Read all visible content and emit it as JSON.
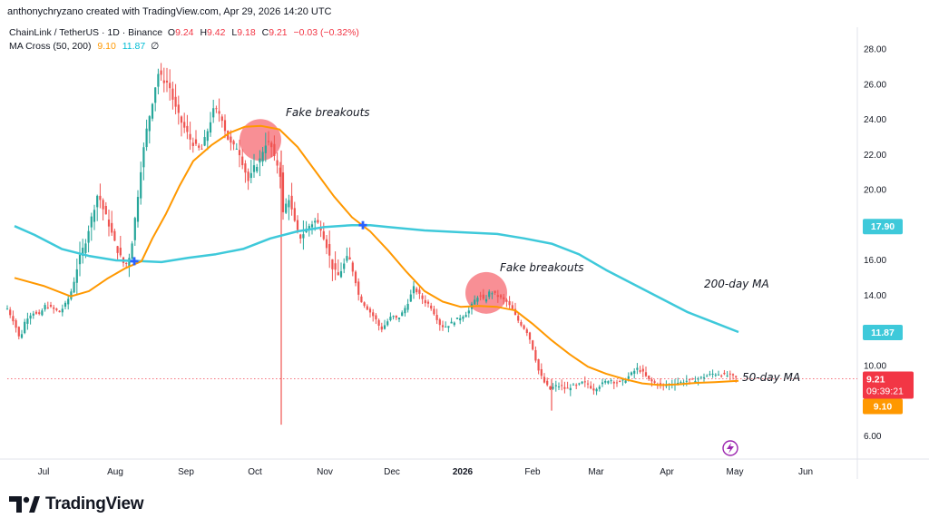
{
  "header": {
    "credit": "anthonychryzano created with TradingView.com, Apr 29, 2026 14:20 UTC",
    "symbol": "ChainLink / TetherUS · 1D · Binance",
    "ohlc": {
      "o_label": "O",
      "o": "9.24",
      "h_label": "H",
      "h": "9.42",
      "l_label": "L",
      "l": "9.18",
      "c_label": "C",
      "c": "9.21",
      "change": "−0.03 (−0.32%)"
    },
    "indicator": "MA Cross (50, 200)",
    "ma50_value": "9.10",
    "ma200_value": "11.87",
    "settings_glyph": "∅"
  },
  "brand": {
    "name": "TradingView",
    "logo_icon": "tradingview-logo-icon"
  },
  "colors": {
    "up": "#26a69a",
    "down": "#ef5350",
    "ma50": "#ff9800",
    "ma200": "#3ec9da",
    "cross_marker": "#2962ff",
    "highlight": "#f77b82",
    "price_tag": "#f23645"
  },
  "chart_data": {
    "type": "candlestick",
    "title": "ChainLink / TetherUS · 1D · Binance",
    "y_axis": {
      "ticks": [
        "28.00",
        "26.00",
        "24.00",
        "22.00",
        "20.00",
        "16.00",
        "14.00",
        "10.00",
        "6.00"
      ],
      "range": [
        4.8,
        28.8
      ]
    },
    "x_axis": {
      "ticks": [
        "Jul",
        "Aug",
        "Sep",
        "Oct",
        "Nov",
        "Dec",
        "2026",
        "Feb",
        "Mar",
        "Apr",
        "May",
        "Jun"
      ]
    },
    "price_labels": [
      {
        "name": "MA 200",
        "value": "17.90",
        "color": "#3ec9da"
      },
      {
        "name": "MA 200 (current)",
        "value": "11.87",
        "color": "#3ec9da"
      },
      {
        "name": "Last price",
        "value": "9.21",
        "countdown": "09:39:21",
        "color": "#f23645"
      },
      {
        "name": "MA 50",
        "value": "9.10",
        "color": "#ff9800"
      }
    ],
    "annotations": [
      {
        "text": "Fake breakouts",
        "at": "Oct",
        "y": 24.2
      },
      {
        "text": "Fake breakouts",
        "at": "Jan",
        "y": 15.8
      },
      {
        "text": "200-day MA",
        "at": "Apr",
        "y": 13.8
      },
      {
        "text": "50-day MA",
        "at": "May",
        "y": 9.8
      }
    ],
    "crosses": [
      {
        "at": "Aug",
        "value": 15.9
      },
      {
        "at": "Nov",
        "value": 17.95
      }
    ],
    "price_path": [
      [
        0,
        13.2
      ],
      [
        8,
        12.4
      ],
      [
        14,
        11.4
      ],
      [
        20,
        12.6
      ],
      [
        28,
        13.0
      ],
      [
        35,
        12.8
      ],
      [
        42,
        13.4
      ],
      [
        50,
        13.2
      ],
      [
        58,
        13.0
      ],
      [
        66,
        13.6
      ],
      [
        72,
        14.4
      ],
      [
        78,
        15.8
      ],
      [
        86,
        17.0
      ],
      [
        94,
        18.6
      ],
      [
        100,
        19.8
      ],
      [
        106,
        18.8
      ],
      [
        112,
        18.0
      ],
      [
        118,
        17.0
      ],
      [
        124,
        16.2
      ],
      [
        130,
        15.6
      ],
      [
        136,
        16.4
      ],
      [
        142,
        18.8
      ],
      [
        148,
        21.5
      ],
      [
        154,
        23.5
      ],
      [
        160,
        25.0
      ],
      [
        166,
        26.6
      ],
      [
        172,
        26.2
      ],
      [
        178,
        26.0
      ],
      [
        184,
        24.8
      ],
      [
        190,
        24.0
      ],
      [
        196,
        23.4
      ],
      [
        202,
        22.8
      ],
      [
        208,
        22.4
      ],
      [
        214,
        22.2
      ],
      [
        220,
        23.2
      ],
      [
        228,
        24.6
      ],
      [
        236,
        24.2
      ],
      [
        242,
        23.0
      ],
      [
        248,
        22.4
      ],
      [
        254,
        22.4
      ],
      [
        260,
        21.4
      ],
      [
        266,
        20.4
      ],
      [
        272,
        21.2
      ],
      [
        278,
        21.6
      ],
      [
        284,
        22.6
      ],
      [
        290,
        22.6
      ],
      [
        296,
        21.4
      ],
      [
        300,
        21.4
      ],
      [
        304,
        18.6
      ],
      [
        310,
        19.6
      ],
      [
        316,
        18.2
      ],
      [
        322,
        17.2
      ],
      [
        328,
        17.6
      ],
      [
        334,
        18.0
      ],
      [
        340,
        18.2
      ],
      [
        346,
        17.8
      ],
      [
        352,
        16.8
      ],
      [
        358,
        15.6
      ],
      [
        364,
        15.0
      ],
      [
        370,
        15.6
      ],
      [
        376,
        16.2
      ],
      [
        382,
        15.2
      ],
      [
        388,
        13.8
      ],
      [
        394,
        13.4
      ],
      [
        400,
        13.0
      ],
      [
        406,
        12.6
      ],
      [
        412,
        12.0
      ],
      [
        418,
        12.4
      ],
      [
        424,
        12.8
      ],
      [
        430,
        12.6
      ],
      [
        436,
        13.0
      ],
      [
        442,
        13.6
      ],
      [
        448,
        14.4
      ],
      [
        454,
        14.0
      ],
      [
        460,
        13.6
      ],
      [
        466,
        13.4
      ],
      [
        472,
        12.8
      ],
      [
        478,
        12.2
      ],
      [
        484,
        12.2
      ],
      [
        490,
        12.4
      ],
      [
        496,
        12.6
      ],
      [
        502,
        12.8
      ],
      [
        508,
        13.0
      ],
      [
        514,
        13.6
      ],
      [
        520,
        14.0
      ],
      [
        526,
        13.6
      ],
      [
        532,
        14.2
      ],
      [
        538,
        14.0
      ],
      [
        544,
        13.8
      ],
      [
        550,
        13.6
      ],
      [
        556,
        13.2
      ],
      [
        562,
        12.6
      ],
      [
        568,
        12.2
      ],
      [
        574,
        11.8
      ],
      [
        580,
        10.8
      ],
      [
        586,
        9.6
      ],
      [
        592,
        9.0
      ],
      [
        598,
        8.6
      ],
      [
        604,
        8.8
      ],
      [
        610,
        8.8
      ],
      [
        616,
        8.6
      ],
      [
        622,
        8.8
      ],
      [
        628,
        8.8
      ],
      [
        634,
        9.0
      ],
      [
        640,
        8.9
      ],
      [
        646,
        8.6
      ],
      [
        652,
        8.8
      ],
      [
        658,
        9.0
      ],
      [
        664,
        9.2
      ],
      [
        670,
        9.0
      ],
      [
        676,
        9.0
      ],
      [
        682,
        9.2
      ],
      [
        688,
        9.5
      ],
      [
        694,
        9.8
      ],
      [
        700,
        9.6
      ],
      [
        706,
        9.2
      ],
      [
        712,
        9.0
      ],
      [
        718,
        8.9
      ],
      [
        724,
        8.8
      ],
      [
        730,
        8.9
      ],
      [
        736,
        9.0
      ],
      [
        742,
        9.0
      ],
      [
        748,
        9.1
      ],
      [
        754,
        9.1
      ],
      [
        760,
        9.2
      ],
      [
        766,
        9.3
      ],
      [
        772,
        9.4
      ],
      [
        778,
        9.5
      ],
      [
        784,
        9.5
      ],
      [
        790,
        9.4
      ],
      [
        796,
        9.4
      ],
      [
        802,
        9.3
      ],
      [
        806,
        9.21
      ]
    ],
    "spike_wicks": [
      {
        "at": 302,
        "low": 6.6,
        "high": 22.2
      },
      {
        "at": 600,
        "low": 7.4,
        "high": 9.2
      }
    ],
    "ma50": [
      [
        8,
        14.95
      ],
      [
        40,
        14.5
      ],
      [
        70,
        13.9
      ],
      [
        90,
        14.2
      ],
      [
        110,
        14.9
      ],
      [
        130,
        15.5
      ],
      [
        148,
        15.9
      ],
      [
        160,
        17.2
      ],
      [
        175,
        18.6
      ],
      [
        190,
        20.2
      ],
      [
        205,
        21.6
      ],
      [
        225,
        22.5
      ],
      [
        245,
        23.2
      ],
      [
        262,
        23.55
      ],
      [
        280,
        23.6
      ],
      [
        300,
        23.4
      ],
      [
        320,
        22.4
      ],
      [
        340,
        21.0
      ],
      [
        360,
        19.6
      ],
      [
        380,
        18.4
      ],
      [
        400,
        17.6
      ],
      [
        420,
        16.5
      ],
      [
        440,
        15.3
      ],
      [
        460,
        14.2
      ],
      [
        480,
        13.6
      ],
      [
        500,
        13.3
      ],
      [
        520,
        13.35
      ],
      [
        540,
        13.3
      ],
      [
        560,
        13.1
      ],
      [
        580,
        12.3
      ],
      [
        600,
        11.4
      ],
      [
        620,
        10.6
      ],
      [
        640,
        9.9
      ],
      [
        660,
        9.5
      ],
      [
        680,
        9.2
      ],
      [
        700,
        8.95
      ],
      [
        720,
        8.85
      ],
      [
        740,
        8.9
      ],
      [
        760,
        8.98
      ],
      [
        780,
        9.02
      ],
      [
        806,
        9.1
      ]
    ],
    "ma200": [
      [
        8,
        17.9
      ],
      [
        30,
        17.4
      ],
      [
        60,
        16.6
      ],
      [
        90,
        16.2
      ],
      [
        120,
        15.95
      ],
      [
        148,
        15.9
      ],
      [
        170,
        15.85
      ],
      [
        200,
        16.1
      ],
      [
        230,
        16.3
      ],
      [
        260,
        16.6
      ],
      [
        290,
        17.2
      ],
      [
        320,
        17.6
      ],
      [
        350,
        17.85
      ],
      [
        380,
        17.95
      ],
      [
        400,
        17.95
      ],
      [
        420,
        17.85
      ],
      [
        460,
        17.65
      ],
      [
        500,
        17.55
      ],
      [
        540,
        17.45
      ],
      [
        570,
        17.2
      ],
      [
        600,
        16.9
      ],
      [
        630,
        16.3
      ],
      [
        660,
        15.4
      ],
      [
        690,
        14.6
      ],
      [
        720,
        13.8
      ],
      [
        750,
        13.0
      ],
      [
        780,
        12.4
      ],
      [
        806,
        11.87
      ]
    ]
  }
}
